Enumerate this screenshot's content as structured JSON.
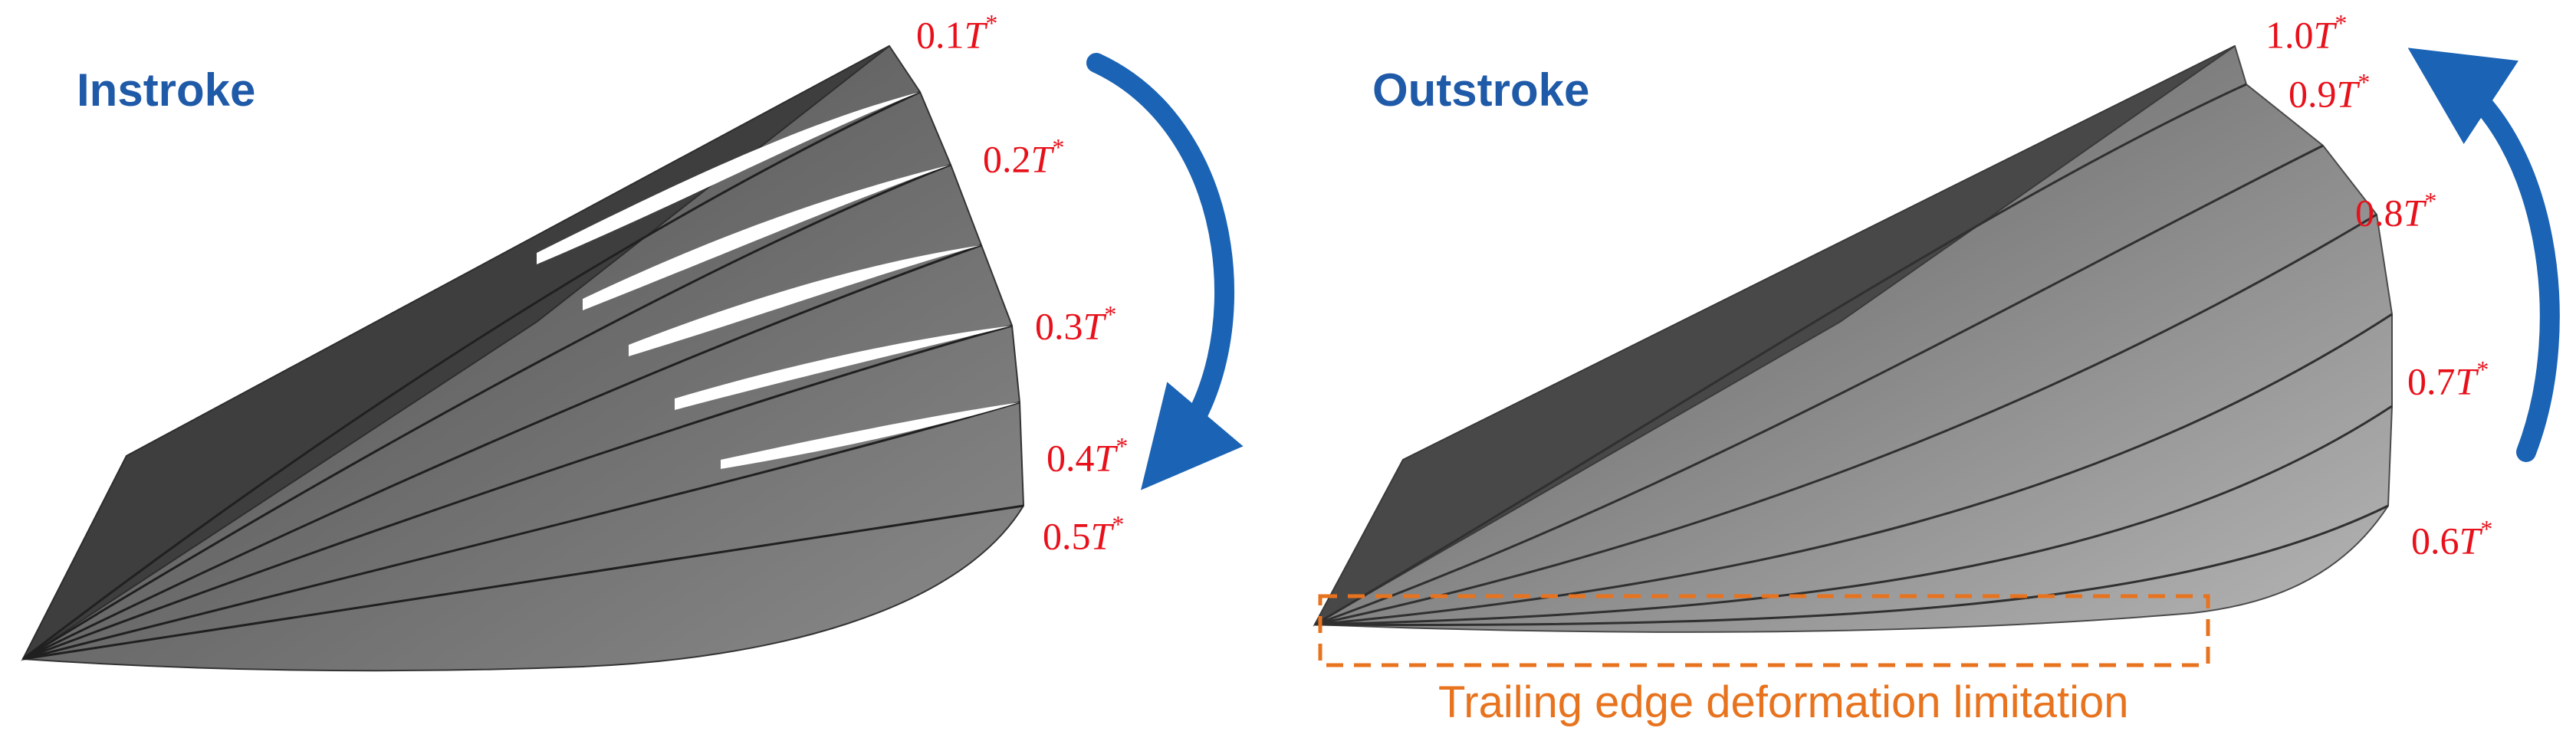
{
  "panels": {
    "instroke": {
      "title": "Instroke",
      "labels": [
        {
          "num": "0.1",
          "sym": "T",
          "sup": "*"
        },
        {
          "num": "0.2",
          "sym": "T",
          "sup": "*"
        },
        {
          "num": "0.3",
          "sym": "T",
          "sup": "*"
        },
        {
          "num": "0.4",
          "sym": "T",
          "sup": "*"
        },
        {
          "num": "0.5",
          "sym": "T",
          "sup": "*"
        }
      ]
    },
    "outstroke": {
      "title": "Outstroke",
      "labels": [
        {
          "num": "1.0",
          "sym": "T",
          "sup": "*"
        },
        {
          "num": "0.9",
          "sym": "T",
          "sup": "*"
        },
        {
          "num": "0.8",
          "sym": "T",
          "sup": "*"
        },
        {
          "num": "0.7",
          "sym": "T",
          "sup": "*"
        },
        {
          "num": "0.6",
          "sym": "T",
          "sup": "*"
        }
      ]
    }
  },
  "annotation": {
    "text": "Trailing edge deformation limitation"
  },
  "colors": {
    "title": "#1f5aa8",
    "phase_label": "#e8101a",
    "annotation": "#e8731e",
    "arrow": "#1a63b5"
  }
}
